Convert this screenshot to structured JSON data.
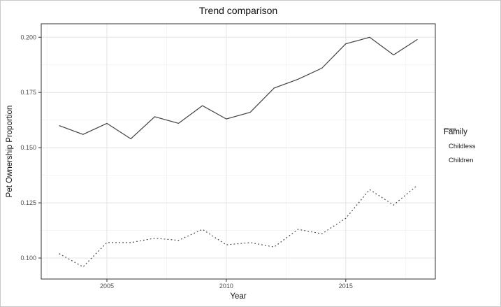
{
  "chart_data": {
    "type": "line",
    "title": "Trend comparison",
    "xlabel": "Year",
    "ylabel": "Pet Ownership Proportion",
    "legend_title": "Family",
    "legend_position": "right",
    "grid": true,
    "x": [
      2003,
      2004,
      2005,
      2006,
      2007,
      2008,
      2009,
      2010,
      2011,
      2012,
      2013,
      2014,
      2015,
      2016,
      2017,
      2018
    ],
    "series": [
      {
        "name": "Childless",
        "linestyle": "solid",
        "color": "#424242",
        "values": [
          0.16,
          0.156,
          0.161,
          0.154,
          0.164,
          0.161,
          0.169,
          0.163,
          0.166,
          0.177,
          0.181,
          0.186,
          0.197,
          0.2,
          0.192,
          0.199
        ]
      },
      {
        "name": "Children",
        "linestyle": "dotted",
        "color": "#424242",
        "values": [
          0.102,
          0.096,
          0.107,
          0.107,
          0.109,
          0.108,
          0.113,
          0.106,
          0.107,
          0.105,
          0.113,
          0.111,
          0.118,
          0.131,
          0.124,
          0.133
        ]
      }
    ],
    "xticks": [
      {
        "v": 2005,
        "label": "2005"
      },
      {
        "v": 2010,
        "label": "2010"
      },
      {
        "v": 2015,
        "label": "2015"
      }
    ],
    "yticks": [
      {
        "v": 0.1,
        "label": "0.100"
      },
      {
        "v": 0.125,
        "label": "0.125"
      },
      {
        "v": 0.15,
        "label": "0.150"
      },
      {
        "v": 0.175,
        "label": "0.175"
      },
      {
        "v": 0.2,
        "label": "0.200"
      }
    ],
    "xlim": [
      2002.25,
      2018.75
    ],
    "ylim": [
      0.0905,
      0.2061
    ],
    "colors": {
      "panel_border": "#333333",
      "grid_major": "#e4e4e4",
      "grid_minor": "#f1f1f1",
      "tick_text": "#4d4d4d"
    }
  }
}
